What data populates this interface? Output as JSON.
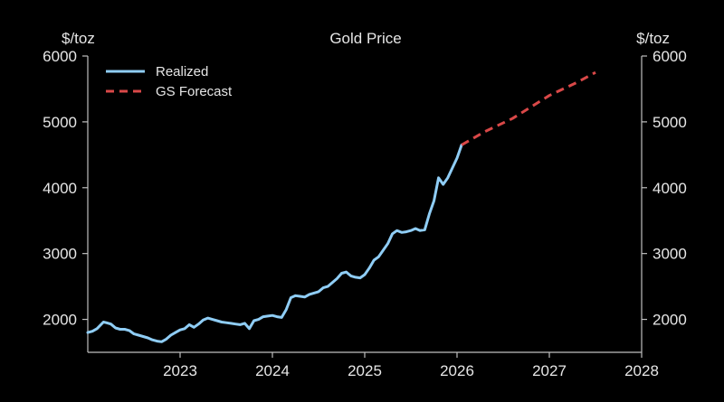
{
  "chart_data": {
    "type": "line",
    "title": "Gold Price",
    "y_unit_left": "$/toz",
    "y_unit_right": "$/toz",
    "xlabel": "",
    "ylabel": "$/toz",
    "xlim": [
      2022.0,
      2028.0
    ],
    "ylim": [
      1500,
      6000
    ],
    "x_ticks": [
      2023,
      2024,
      2025,
      2026,
      2027,
      2028
    ],
    "x_tick_labels": [
      "2023",
      "2024",
      "2025",
      "2026",
      "2027",
      "2028"
    ],
    "y_ticks": [
      2000,
      3000,
      4000,
      5000,
      6000
    ],
    "y_tick_labels": [
      "2000",
      "3000",
      "4000",
      "5000",
      "6000"
    ],
    "legend_position": "top-left",
    "colors": {
      "background": "#000000",
      "axis": "#bfbfbf",
      "text": "#e6e6e6",
      "realized": "#8fcdf5",
      "forecast": "#d94848"
    },
    "series": [
      {
        "name": "Realized",
        "style": "solid",
        "x": [
          2022.0,
          2022.05,
          2022.1,
          2022.17,
          2022.2,
          2022.25,
          2022.3,
          2022.35,
          2022.4,
          2022.45,
          2022.5,
          2022.55,
          2022.6,
          2022.65,
          2022.7,
          2022.75,
          2022.8,
          2022.85,
          2022.9,
          2022.95,
          2023.0,
          2023.05,
          2023.1,
          2023.15,
          2023.2,
          2023.25,
          2023.3,
          2023.35,
          2023.4,
          2023.45,
          2023.5,
          2023.55,
          2023.6,
          2023.65,
          2023.7,
          2023.75,
          2023.8,
          2023.85,
          2023.9,
          2023.95,
          2024.0,
          2024.05,
          2024.1,
          2024.15,
          2024.2,
          2024.25,
          2024.3,
          2024.35,
          2024.4,
          2024.45,
          2024.5,
          2024.55,
          2024.6,
          2024.65,
          2024.7,
          2024.75,
          2024.8,
          2024.85,
          2024.9,
          2024.95,
          2025.0,
          2025.05,
          2025.1,
          2025.15,
          2025.2,
          2025.25,
          2025.3,
          2025.35,
          2025.4,
          2025.45,
          2025.5,
          2025.55,
          2025.6,
          2025.65,
          2025.7,
          2025.75,
          2025.8,
          2025.85,
          2025.9,
          2025.95,
          2026.0,
          2026.05
        ],
        "values": [
          1800,
          1820,
          1860,
          1960,
          1950,
          1930,
          1870,
          1850,
          1850,
          1830,
          1780,
          1760,
          1740,
          1720,
          1690,
          1670,
          1660,
          1700,
          1760,
          1800,
          1840,
          1860,
          1920,
          1880,
          1930,
          1990,
          2020,
          2000,
          1980,
          1960,
          1950,
          1940,
          1930,
          1920,
          1940,
          1860,
          1980,
          2000,
          2040,
          2050,
          2060,
          2040,
          2030,
          2150,
          2330,
          2360,
          2350,
          2340,
          2380,
          2400,
          2420,
          2480,
          2500,
          2560,
          2620,
          2700,
          2720,
          2660,
          2640,
          2630,
          2680,
          2780,
          2900,
          2950,
          3050,
          3150,
          3300,
          3350,
          3320,
          3330,
          3350,
          3380,
          3350,
          3360,
          3600,
          3800,
          4150,
          4050,
          4150,
          4300,
          4450,
          4650
        ]
      },
      {
        "name": "GS Forecast",
        "style": "dashed",
        "x": [
          2026.05,
          2026.3,
          2026.6,
          2027.0,
          2027.3,
          2027.5
        ],
        "values": [
          4650,
          4850,
          5050,
          5400,
          5600,
          5750
        ]
      }
    ]
  }
}
